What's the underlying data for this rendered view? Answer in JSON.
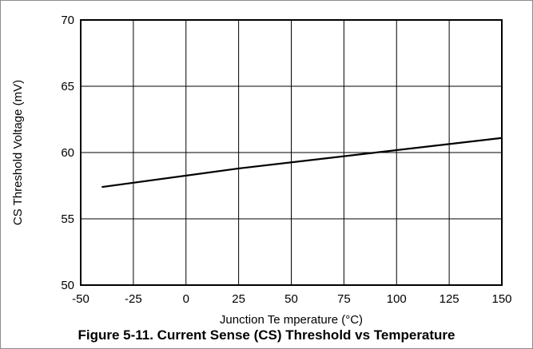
{
  "chart_data": {
    "type": "line",
    "title": "",
    "xlabel": "Junction Te mperature (°C)",
    "ylabel": "CS Threshold Voltage (mV)",
    "xlim": [
      -50,
      150
    ],
    "ylim": [
      50,
      70
    ],
    "x_ticks": [
      "-50",
      "-25",
      "0",
      "25",
      "50",
      "75",
      "100",
      "125",
      "150"
    ],
    "y_ticks": [
      "50",
      "55",
      "60",
      "65",
      "70"
    ],
    "grid": true,
    "legend": "none",
    "line_color": "#000000",
    "series": [
      {
        "x": [
          -40,
          25,
          150
        ],
        "values": [
          57.4,
          58.8,
          61.1
        ]
      }
    ]
  },
  "caption": "Figure 5-11. Current Sense (CS) Threshold vs Temperature"
}
